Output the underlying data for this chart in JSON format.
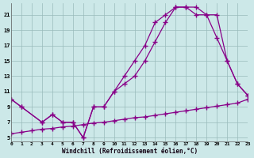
{
  "bg_color": "#cce8e8",
  "grid_color": "#99bbbb",
  "line_color": "#880088",
  "xlabel": "Windchill (Refroidissement éolien,°C)",
  "xlim": [
    0,
    23
  ],
  "ylim": [
    4.5,
    22.5
  ],
  "xticks": [
    0,
    1,
    2,
    3,
    4,
    5,
    6,
    7,
    8,
    9,
    10,
    11,
    12,
    13,
    14,
    15,
    16,
    17,
    18,
    19,
    20,
    21,
    22,
    23
  ],
  "yticks": [
    5,
    7,
    9,
    11,
    13,
    15,
    17,
    19,
    21
  ],
  "curve1_x": [
    0,
    1,
    3,
    4,
    5,
    6,
    7,
    8,
    9,
    10,
    11,
    12,
    13,
    14,
    15,
    16,
    17,
    18,
    19,
    20,
    21,
    22,
    23
  ],
  "curve1_y": [
    10,
    9,
    7,
    8,
    7,
    7,
    5,
    9,
    9,
    11,
    13,
    15,
    17,
    20,
    21,
    22,
    22,
    22,
    21,
    21,
    15,
    12,
    10.5
  ],
  "curve2_x": [
    0,
    1,
    3,
    4,
    5,
    6,
    7,
    8,
    9,
    10,
    11,
    12,
    13,
    14,
    15,
    16,
    17,
    18,
    19,
    20,
    21,
    22,
    23
  ],
  "curve2_y": [
    10,
    9,
    7,
    8,
    7,
    7,
    5,
    9,
    9,
    11,
    12,
    13,
    15,
    17.5,
    20,
    22,
    22,
    21,
    21,
    18,
    15,
    12,
    10.5
  ],
  "curve3_x": [
    0,
    1,
    2,
    3,
    4,
    5,
    6,
    7,
    8,
    9,
    10,
    11,
    12,
    13,
    14,
    15,
    16,
    17,
    18,
    19,
    20,
    21,
    22,
    23
  ],
  "curve3_y": [
    5.5,
    5.7,
    5.9,
    6.1,
    6.2,
    6.4,
    6.5,
    6.7,
    6.9,
    7.0,
    7.2,
    7.4,
    7.6,
    7.7,
    7.9,
    8.1,
    8.3,
    8.5,
    8.7,
    8.9,
    9.1,
    9.3,
    9.5,
    10.0
  ]
}
